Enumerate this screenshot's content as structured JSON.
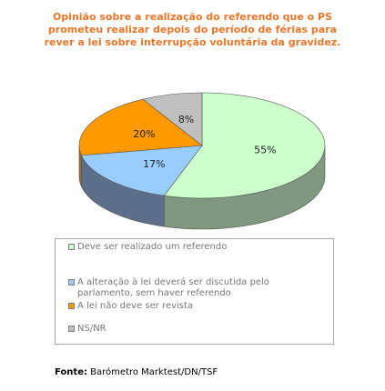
{
  "chart_data": {
    "type": "pie",
    "title_lines": [
      "Opinião sobre a realização do referendo que o PS",
      "prometeu realizar depois do período de férias para",
      "rever a lei sobre interrupção voluntária da gravidez."
    ],
    "slices": [
      {
        "label": "Deve ser realizado um referendo",
        "value": 55,
        "label_text": "55%",
        "color": "#ccffcc",
        "side": "#809880"
      },
      {
        "label": "A alteração à lei deverá ser discutida pelo parlamento, sem haver referendo",
        "value": 17,
        "label_text": "17%",
        "color": "#99ccff",
        "side": "#5c6e8a"
      },
      {
        "label": "A lei não deve ser revista",
        "value": 20,
        "label_text": "20%",
        "color": "#ff9900",
        "side": "#9a6a2a"
      },
      {
        "label": "NS/NR",
        "value": 8,
        "label_text": "8%",
        "color": "#c0c0c0",
        "side": "#7a7a7a"
      }
    ],
    "legend_position": "bottom"
  },
  "source": {
    "label": "Fonte:",
    "text": "Barómetro Marktest/DN/TSF"
  }
}
